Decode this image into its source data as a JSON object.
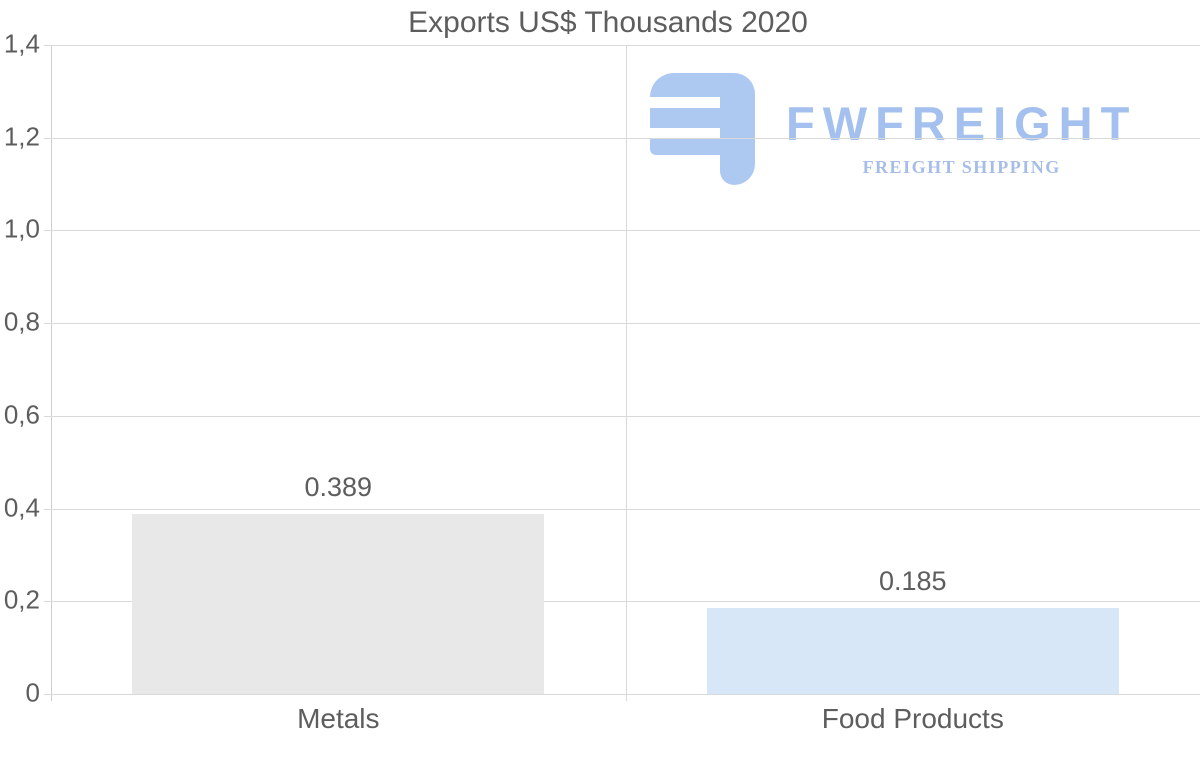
{
  "chart_data": {
    "type": "bar",
    "title": "Exports US$ Thousands 2020",
    "categories": [
      "Metals",
      "Food Products"
    ],
    "values": [
      0.389,
      0.185
    ],
    "value_labels": [
      "0.389",
      "0.185"
    ],
    "bar_colors": [
      "#e8e8e8",
      "#d7e7f8"
    ],
    "xlabel": "",
    "ylabel": "",
    "ylim": [
      0,
      1.4
    ],
    "y_ticks": {
      "values": [
        0,
        0.2,
        0.4,
        0.6,
        0.8,
        1.0,
        1.2,
        1.4
      ],
      "labels": [
        "0",
        "0,2",
        "0,4",
        "0,6",
        "0,8",
        "1,0",
        "1,2",
        "1,4"
      ]
    },
    "grid": true,
    "legend": false
  },
  "watermark": {
    "brand": "FWFREIGHT",
    "tagline": "FREIGHT SHIPPING"
  },
  "colors": {
    "text": "#5d5d5d",
    "gridline": "#d9d9d9",
    "axis_line": "#cfcfcf",
    "logo_icon": "#adc8f1",
    "logo_brand": "#a3c0ee",
    "logo_tagline": "#a7bde9"
  }
}
